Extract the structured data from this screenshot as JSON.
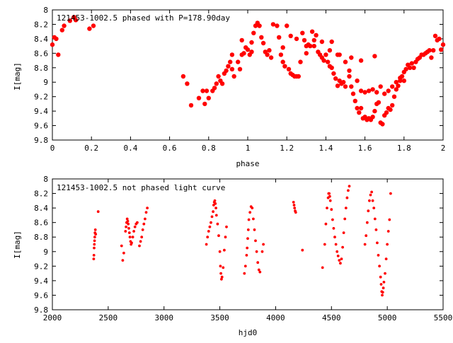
{
  "colors": {
    "data": "#ff0000",
    "axis": "#000000",
    "background": "#ffffff"
  },
  "chart_data": [
    {
      "type": "scatter",
      "title": "121453-1002.5 phased with P=178.90day",
      "xlabel": "phase",
      "ylabel": "I[mag]",
      "xlim": [
        0,
        2
      ],
      "ylim": [
        9.8,
        8.0
      ],
      "y_inverted": true,
      "grid": false,
      "marker": "large filled circle",
      "xticks": [
        0,
        0.2,
        0.4,
        0.6,
        0.8,
        1,
        1.2,
        1.4,
        1.6,
        1.8,
        2
      ],
      "xtick_labels": [
        "0",
        "0.2",
        "0.4",
        "0.6",
        "0.8",
        "1",
        "1.2",
        "1.4",
        "1.6",
        "1.8",
        "2"
      ],
      "yticks": [
        8,
        8.2,
        8.4,
        8.6,
        8.8,
        9,
        9.2,
        9.4,
        9.6,
        9.8
      ],
      "ytick_labels": [
        "8",
        "8.2",
        "8.4",
        "8.6",
        "8.8",
        "9",
        "9.2",
        "9.4",
        "9.6",
        "9.8"
      ],
      "points": [
        [
          0.0,
          8.48
        ],
        [
          0.01,
          8.38
        ],
        [
          0.02,
          8.4
        ],
        [
          0.03,
          8.62
        ],
        [
          0.05,
          8.28
        ],
        [
          0.06,
          8.22
        ],
        [
          0.09,
          8.15
        ],
        [
          0.11,
          8.1
        ],
        [
          0.12,
          8.14
        ],
        [
          0.19,
          8.26
        ],
        [
          0.21,
          8.22
        ],
        [
          0.67,
          8.92
        ],
        [
          0.69,
          9.02
        ],
        [
          0.71,
          9.32
        ],
        [
          0.75,
          9.22
        ],
        [
          0.77,
          9.12
        ],
        [
          0.78,
          9.3
        ],
        [
          0.79,
          9.12
        ],
        [
          0.8,
          9.22
        ],
        [
          0.82,
          9.12
        ],
        [
          0.83,
          9.08
        ],
        [
          0.84,
          9.02
        ],
        [
          0.85,
          8.92
        ],
        [
          0.86,
          8.98
        ],
        [
          0.87,
          9.02
        ],
        [
          0.88,
          8.88
        ],
        [
          0.89,
          8.84
        ],
        [
          0.9,
          8.78
        ],
        [
          0.91,
          8.72
        ],
        [
          0.92,
          8.62
        ],
        [
          0.92,
          8.82
        ],
        [
          0.93,
          8.92
        ],
        [
          0.95,
          8.72
        ],
        [
          0.96,
          8.82
        ],
        [
          0.97,
          8.62
        ],
        [
          0.97,
          8.42
        ],
        [
          0.98,
          8.6
        ],
        [
          0.99,
          8.52
        ],
        [
          1.0,
          8.55
        ],
        [
          1.01,
          8.62
        ],
        [
          1.02,
          8.58
        ],
        [
          1.02,
          8.45
        ],
        [
          1.03,
          8.32
        ],
        [
          1.04,
          8.22
        ],
        [
          1.05,
          8.18
        ],
        [
          1.06,
          8.22
        ],
        [
          1.07,
          8.38
        ],
        [
          1.08,
          8.46
        ],
        [
          1.09,
          8.58
        ],
        [
          1.1,
          8.62
        ],
        [
          1.11,
          8.56
        ],
        [
          1.12,
          8.66
        ],
        [
          1.13,
          8.2
        ],
        [
          1.15,
          8.22
        ],
        [
          1.16,
          8.38
        ],
        [
          1.17,
          8.62
        ],
        [
          1.18,
          8.72
        ],
        [
          1.19,
          8.78
        ],
        [
          1.2,
          8.22
        ],
        [
          1.21,
          8.82
        ],
        [
          1.22,
          8.88
        ],
        [
          1.23,
          8.9
        ],
        [
          1.24,
          8.92
        ],
        [
          1.25,
          8.92
        ],
        [
          1.26,
          8.92
        ],
        [
          1.27,
          8.72
        ],
        [
          1.28,
          8.32
        ],
        [
          1.29,
          8.42
        ],
        [
          1.3,
          8.5
        ],
        [
          1.31,
          8.48
        ],
        [
          1.32,
          8.5
        ],
        [
          1.33,
          8.3
        ],
        [
          1.34,
          8.42
        ],
        [
          1.35,
          8.35
        ],
        [
          1.36,
          8.58
        ],
        [
          1.37,
          8.62
        ],
        [
          1.38,
          8.66
        ],
        [
          1.39,
          8.7
        ],
        [
          1.4,
          8.62
        ],
        [
          1.41,
          8.72
        ],
        [
          1.42,
          8.78
        ],
        [
          1.43,
          8.8
        ],
        [
          1.44,
          8.88
        ],
        [
          1.45,
          8.95
        ],
        [
          1.46,
          9.05
        ],
        [
          1.47,
          8.98
        ],
        [
          1.48,
          9.02
        ],
        [
          1.49,
          9.0
        ],
        [
          1.5,
          9.06
        ],
        [
          1.52,
          8.92
        ],
        [
          1.53,
          9.06
        ],
        [
          1.54,
          9.16
        ],
        [
          1.55,
          9.26
        ],
        [
          1.56,
          9.36
        ],
        [
          1.57,
          9.42
        ],
        [
          1.58,
          9.36
        ],
        [
          1.59,
          9.5
        ],
        [
          1.6,
          9.48
        ],
        [
          1.61,
          9.52
        ],
        [
          1.62,
          9.5
        ],
        [
          1.63,
          9.52
        ],
        [
          1.64,
          9.48
        ],
        [
          1.65,
          9.4
        ],
        [
          1.66,
          9.3
        ],
        [
          1.67,
          9.28
        ],
        [
          1.68,
          9.56
        ],
        [
          1.69,
          9.58
        ],
        [
          1.7,
          9.46
        ],
        [
          1.71,
          9.42
        ],
        [
          1.72,
          9.36
        ],
        [
          1.73,
          9.38
        ],
        [
          1.74,
          9.32
        ],
        [
          1.75,
          9.2
        ],
        [
          1.76,
          9.1
        ],
        [
          1.77,
          9.05
        ],
        [
          1.78,
          8.98
        ],
        [
          1.79,
          8.92
        ],
        [
          1.8,
          8.86
        ],
        [
          1.81,
          8.82
        ],
        [
          1.82,
          8.76
        ],
        [
          1.83,
          8.8
        ],
        [
          1.84,
          8.74
        ],
        [
          1.85,
          8.8
        ],
        [
          1.86,
          8.72
        ],
        [
          1.87,
          8.68
        ],
        [
          1.88,
          8.66
        ],
        [
          1.89,
          8.62
        ],
        [
          1.9,
          8.62
        ],
        [
          1.91,
          8.6
        ],
        [
          1.92,
          8.58
        ],
        [
          1.93,
          8.56
        ],
        [
          1.94,
          8.66
        ],
        [
          1.95,
          8.56
        ],
        [
          1.96,
          8.36
        ],
        [
          1.97,
          8.42
        ],
        [
          1.98,
          8.4
        ],
        [
          1.99,
          8.55
        ],
        [
          2.0,
          8.48
        ],
        [
          1.18,
          8.52
        ],
        [
          1.22,
          8.36
        ],
        [
          1.25,
          8.4
        ],
        [
          1.3,
          8.6
        ],
        [
          1.34,
          8.5
        ],
        [
          1.38,
          8.44
        ],
        [
          1.42,
          8.56
        ],
        [
          1.46,
          8.62
        ],
        [
          1.5,
          8.72
        ],
        [
          1.52,
          8.84
        ],
        [
          1.56,
          8.98
        ],
        [
          1.58,
          9.12
        ],
        [
          1.6,
          9.14
        ],
        [
          1.62,
          9.12
        ],
        [
          1.64,
          9.1
        ],
        [
          1.66,
          9.14
        ],
        [
          1.68,
          9.06
        ],
        [
          1.7,
          9.16
        ],
        [
          1.72,
          9.12
        ],
        [
          1.74,
          9.06
        ],
        [
          1.76,
          9.0
        ],
        [
          1.78,
          8.94
        ],
        [
          1.8,
          8.98
        ],
        [
          1.43,
          8.44
        ],
        [
          1.47,
          8.62
        ],
        [
          1.53,
          8.66
        ],
        [
          1.58,
          8.7
        ],
        [
          1.65,
          8.64
        ]
      ]
    },
    {
      "type": "scatter",
      "title": "121453-1002.5 not phased light curve",
      "xlabel": "hjd0",
      "ylabel": "I[mag]",
      "xlim": [
        2000,
        5500
      ],
      "ylim": [
        9.8,
        8.0
      ],
      "y_inverted": true,
      "grid": false,
      "marker": "small filled circle",
      "xticks": [
        2000,
        2500,
        3000,
        3500,
        4000,
        4500,
        5000,
        5500
      ],
      "xtick_labels": [
        "2000",
        "2500",
        "3000",
        "3500",
        "4000",
        "4500",
        "5000",
        "5500"
      ],
      "yticks": [
        8,
        8.2,
        8.4,
        8.6,
        8.8,
        9,
        9.2,
        9.4,
        9.6,
        9.8
      ],
      "ytick_labels": [
        "8",
        "8.2",
        "8.4",
        "8.6",
        "8.8",
        "9",
        "9.2",
        "9.4",
        "9.6",
        "9.8"
      ],
      "points": [
        [
          2370,
          9.1
        ],
        [
          2372,
          9.05
        ],
        [
          2374,
          8.95
        ],
        [
          2376,
          8.9
        ],
        [
          2378,
          8.85
        ],
        [
          2380,
          8.8
        ],
        [
          2382,
          8.74
        ],
        [
          2385,
          8.7
        ],
        [
          2388,
          8.76
        ],
        [
          2410,
          8.45
        ],
        [
          2620,
          8.92
        ],
        [
          2630,
          9.12
        ],
        [
          2640,
          9.02
        ],
        [
          2655,
          8.72
        ],
        [
          2660,
          8.66
        ],
        [
          2665,
          8.6
        ],
        [
          2670,
          8.55
        ],
        [
          2675,
          8.58
        ],
        [
          2680,
          8.62
        ],
        [
          2685,
          8.68
        ],
        [
          2690,
          8.74
        ],
        [
          2695,
          8.8
        ],
        [
          2700,
          8.86
        ],
        [
          2705,
          8.9
        ],
        [
          2710,
          8.88
        ],
        [
          2720,
          8.8
        ],
        [
          2730,
          8.72
        ],
        [
          2740,
          8.66
        ],
        [
          2750,
          8.62
        ],
        [
          2760,
          8.6
        ],
        [
          2780,
          8.92
        ],
        [
          2790,
          8.86
        ],
        [
          2800,
          8.8
        ],
        [
          2810,
          8.7
        ],
        [
          2820,
          8.62
        ],
        [
          2830,
          8.55
        ],
        [
          2840,
          8.46
        ],
        [
          2850,
          8.4
        ],
        [
          3380,
          8.9
        ],
        [
          3390,
          8.8
        ],
        [
          3400,
          8.72
        ],
        [
          3410,
          8.66
        ],
        [
          3420,
          8.6
        ],
        [
          3430,
          8.52
        ],
        [
          3440,
          8.45
        ],
        [
          3445,
          8.36
        ],
        [
          3450,
          8.32
        ],
        [
          3455,
          8.3
        ],
        [
          3460,
          8.34
        ],
        [
          3465,
          8.4
        ],
        [
          3470,
          8.5
        ],
        [
          3480,
          8.62
        ],
        [
          3490,
          8.78
        ],
        [
          3500,
          9.0
        ],
        [
          3505,
          9.2
        ],
        [
          3510,
          9.3
        ],
        [
          3515,
          9.38
        ],
        [
          3520,
          9.35
        ],
        [
          3530,
          9.22
        ],
        [
          3540,
          8.98
        ],
        [
          3550,
          8.8
        ],
        [
          3560,
          8.66
        ],
        [
          3720,
          9.3
        ],
        [
          3730,
          9.2
        ],
        [
          3740,
          9.05
        ],
        [
          3745,
          8.95
        ],
        [
          3750,
          8.82
        ],
        [
          3755,
          8.7
        ],
        [
          3760,
          8.56
        ],
        [
          3770,
          8.46
        ],
        [
          3780,
          8.38
        ],
        [
          3790,
          8.4
        ],
        [
          3800,
          8.55
        ],
        [
          3810,
          8.7
        ],
        [
          3820,
          8.85
        ],
        [
          3830,
          9.0
        ],
        [
          3840,
          9.15
        ],
        [
          3850,
          9.25
        ],
        [
          3860,
          9.28
        ],
        [
          3880,
          9.0
        ],
        [
          3890,
          8.9
        ],
        [
          4160,
          8.32
        ],
        [
          4165,
          8.36
        ],
        [
          4170,
          8.4
        ],
        [
          4175,
          8.44
        ],
        [
          4180,
          8.46
        ],
        [
          4240,
          8.98
        ],
        [
          4420,
          9.22
        ],
        [
          4440,
          8.9
        ],
        [
          4450,
          8.62
        ],
        [
          4460,
          8.4
        ],
        [
          4470,
          8.26
        ],
        [
          4475,
          8.2
        ],
        [
          4480,
          8.2
        ],
        [
          4485,
          8.24
        ],
        [
          4490,
          8.3
        ],
        [
          4500,
          8.42
        ],
        [
          4510,
          8.56
        ],
        [
          4520,
          8.68
        ],
        [
          4530,
          8.8
        ],
        [
          4540,
          8.9
        ],
        [
          4550,
          9.0
        ],
        [
          4560,
          9.06
        ],
        [
          4570,
          9.12
        ],
        [
          4580,
          9.16
        ],
        [
          4590,
          9.1
        ],
        [
          4600,
          8.94
        ],
        [
          4610,
          8.74
        ],
        [
          4620,
          8.55
        ],
        [
          4630,
          8.4
        ],
        [
          4640,
          8.26
        ],
        [
          4650,
          8.16
        ],
        [
          4660,
          8.1
        ],
        [
          4800,
          8.9
        ],
        [
          4810,
          8.78
        ],
        [
          4820,
          8.6
        ],
        [
          4830,
          8.44
        ],
        [
          4840,
          8.3
        ],
        [
          4850,
          8.22
        ],
        [
          4860,
          8.18
        ],
        [
          4870,
          8.3
        ],
        [
          4880,
          8.4
        ],
        [
          4890,
          8.55
        ],
        [
          4900,
          8.7
        ],
        [
          4910,
          8.88
        ],
        [
          4920,
          9.05
        ],
        [
          4930,
          9.2
        ],
        [
          4940,
          9.35
        ],
        [
          4945,
          9.45
        ],
        [
          4950,
          9.55
        ],
        [
          4955,
          9.6
        ],
        [
          4960,
          9.56
        ],
        [
          4965,
          9.5
        ],
        [
          4970,
          9.42
        ],
        [
          4980,
          9.3
        ],
        [
          4990,
          9.1
        ],
        [
          5000,
          8.9
        ],
        [
          5010,
          8.72
        ],
        [
          5020,
          8.56
        ],
        [
          5030,
          8.2
        ]
      ]
    }
  ]
}
